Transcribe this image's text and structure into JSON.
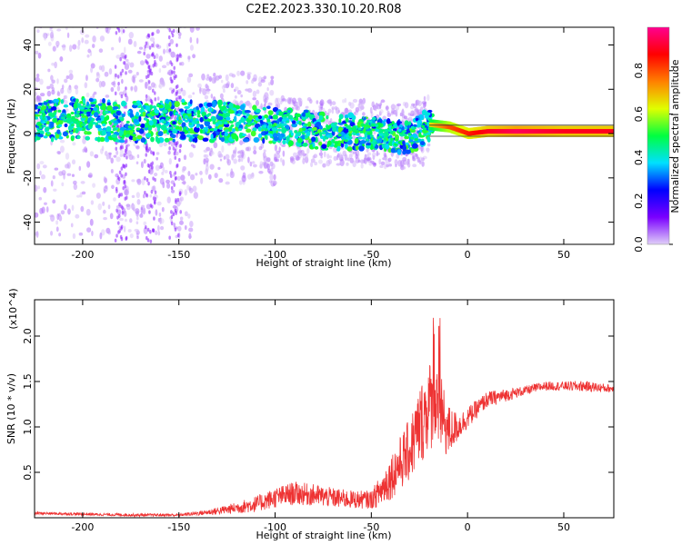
{
  "title": "C2E2.2023.330.10.20.R08",
  "chart_data": [
    {
      "type": "heatmap",
      "xlabel": "Height of straight line (km)",
      "ylabel": "Frequency (Hz)",
      "xlim": [
        -225,
        76
      ],
      "ylim": [
        -50,
        48
      ],
      "x_ticks": [
        -200,
        -150,
        -100,
        -50,
        0,
        50
      ],
      "y_ticks": [
        -40,
        -20,
        0,
        20,
        40
      ],
      "colorbar": {
        "label": "Normalized spectral amplitude",
        "ticks": [
          0.0,
          0.2,
          0.4,
          0.6,
          0.8
        ],
        "range": [
          0,
          1
        ],
        "colormap": [
          "#e0d0f8",
          "#7a00ff",
          "#0000ff",
          "#00e0ff",
          "#00ff40",
          "#e0ff00",
          "#ff8000",
          "#ff0000",
          "#ff0090"
        ]
      },
      "ridge": {
        "x": [
          -225,
          -200,
          -175,
          -150,
          -125,
          -100,
          -75,
          -50,
          -30,
          -20,
          -10,
          0,
          10,
          25,
          50,
          76
        ],
        "frequency": [
          6,
          7,
          5,
          6,
          5,
          4,
          1,
          0,
          -2,
          4,
          3,
          0,
          1,
          1,
          1,
          1
        ],
        "amplitude": [
          0.25,
          0.3,
          0.25,
          0.3,
          0.3,
          0.35,
          0.35,
          0.4,
          0.35,
          0.65,
          0.8,
          0.85,
          0.9,
          0.95,
          0.9,
          0.9
        ]
      }
    },
    {
      "type": "line",
      "xlabel": "Height of straight line (km)",
      "ylabel": "SNR (10 * v/v)",
      "y_multiplier": "(x10^4)",
      "xlim": [
        -225,
        76
      ],
      "ylim": [
        0,
        24000
      ],
      "x_ticks": [
        -200,
        -150,
        -100,
        -50,
        0,
        50
      ],
      "y_ticks": [
        5000,
        10000,
        15000,
        20000
      ],
      "y_tick_labels": [
        "0.5",
        "1.0",
        "1.5",
        "2.0"
      ],
      "color": "#ee3333",
      "series": [
        {
          "x": [
            -225,
            -200,
            -175,
            -150,
            -135,
            -125,
            -110,
            -100,
            -90,
            -80,
            -70,
            -60,
            -50,
            -45,
            -40,
            -35,
            -30,
            -25,
            -20,
            -15,
            -10,
            -5,
            0,
            5,
            10,
            20,
            30,
            40,
            50,
            60,
            70,
            76
          ],
          "values": [
            500,
            400,
            300,
            300,
            600,
            900,
            1500,
            2200,
            2700,
            2500,
            2200,
            2000,
            2000,
            3000,
            4500,
            6000,
            7500,
            10000,
            12500,
            12000,
            9500,
            10000,
            11000,
            12000,
            13000,
            13500,
            14000,
            14500,
            14500,
            14500,
            14300,
            14200
          ],
          "noise": [
            150,
            150,
            150,
            150,
            300,
            500,
            900,
            1100,
            1300,
            1200,
            1100,
            1000,
            1000,
            1800,
            2500,
            3000,
            3500,
            4500,
            5000,
            4500,
            3000,
            1500,
            1200,
            1000,
            900,
            700,
            500,
            500,
            500,
            600,
            500,
            400
          ]
        }
      ]
    }
  ]
}
